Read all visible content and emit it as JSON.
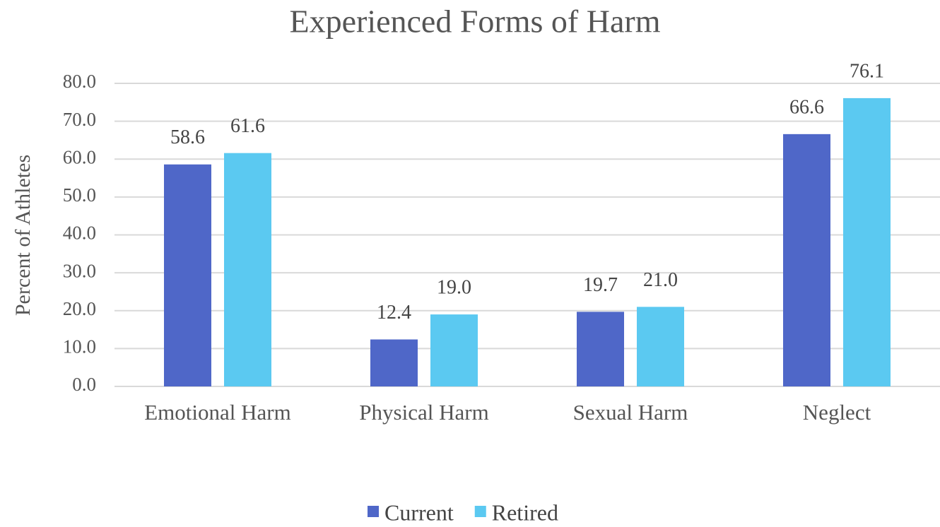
{
  "chart_data": {
    "type": "bar",
    "title": "Experienced Forms of Harm",
    "y_label": "Percent of Athletes",
    "categories": [
      "Emotional Harm",
      "Physical Harm",
      "Sexual Harm",
      "Neglect"
    ],
    "series": [
      {
        "name": "Current",
        "color": "#4f67c8",
        "values": [
          58.6,
          12.4,
          19.7,
          66.6
        ],
        "value_labels": [
          "58.6",
          "12.4",
          "19.7",
          "66.6"
        ]
      },
      {
        "name": "Retired",
        "color": "#5bc9f1",
        "values": [
          61.6,
          19.0,
          21.0,
          76.1
        ],
        "value_labels": [
          "61.6",
          "19.0",
          "21.0",
          "76.1"
        ]
      }
    ],
    "ylim": [
      0,
      80
    ],
    "yticks": [
      {
        "value": 0,
        "label": "0.0"
      },
      {
        "value": 10,
        "label": "10.0"
      },
      {
        "value": 20,
        "label": "20.0"
      },
      {
        "value": 30,
        "label": "30.0"
      },
      {
        "value": 40,
        "label": "40.0"
      },
      {
        "value": 50,
        "label": "50.0"
      },
      {
        "value": 60,
        "label": "60.0"
      },
      {
        "value": 70,
        "label": "70.0"
      },
      {
        "value": 80,
        "label": "80.0"
      }
    ],
    "grid": true,
    "legend": "bottom"
  }
}
